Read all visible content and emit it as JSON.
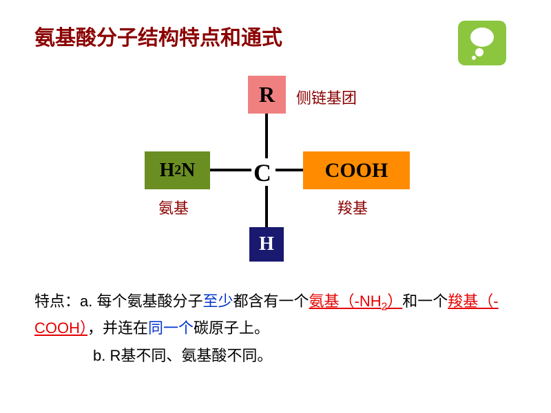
{
  "title": {
    "text": "氨基酸分子结构特点和通式",
    "color": "#8b0000",
    "fontsize": 30
  },
  "icon": {
    "bg": "#8cc63f"
  },
  "diagram": {
    "center_atom": "C",
    "r": {
      "text": "R",
      "bg": "#f08080",
      "label": "侧链基团"
    },
    "amino": {
      "text": "H",
      "sub": "2",
      "text2": "N",
      "bg": "#6b8e23",
      "label": "氨基"
    },
    "carboxyl": {
      "text": "COOH",
      "bg": "#ff8c00",
      "label": "羧基"
    },
    "h": {
      "text": "H",
      "bg": "#191970",
      "color": "#fff"
    },
    "bond_color": "#000000",
    "label_color": "#8b0000"
  },
  "notes": {
    "prefix": "特点：",
    "a_label": "a.  ",
    "a1": "每个氨基酸分子",
    "a2": "至少",
    "a3": "都含有一个",
    "a4": "氨基（-NH",
    "a4sub": "2",
    "a4end": "）",
    "a5": "和一个",
    "a6": "羧基（-COOH）",
    "a7": "，并连在",
    "a8": "同一个",
    "a9": "碳原子上。",
    "b_label": "b.  ",
    "b_text": "R基不同、氨基酸不同。",
    "colors": {
      "red": "#e60000",
      "blue": "#0033cc",
      "black": "#000000"
    }
  }
}
